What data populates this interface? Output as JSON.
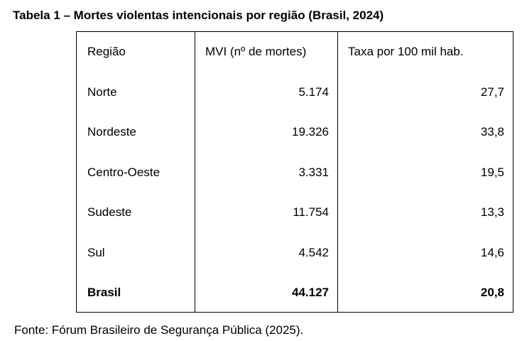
{
  "title": "Tabela 1 – Mortes violentas intencionais por região (Brasil, 2024)",
  "table": {
    "headers": [
      "Região",
      "MVI (nº de mortes)",
      "Taxa por 100 mil hab."
    ],
    "rows": [
      [
        "Norte",
        "5.174",
        "27,7"
      ],
      [
        "Nordeste",
        "19.326",
        "33,8"
      ],
      [
        "Centro-Oeste",
        "3.331",
        "19,5"
      ],
      [
        "Sudeste",
        "11.754",
        "13,3"
      ],
      [
        "Sul",
        "4.542",
        "14,6"
      ]
    ],
    "total": [
      "Brasil",
      "44.127",
      "20,8"
    ]
  },
  "source": "Fonte: Fórum Brasileiro de Segurança Pública (2025)."
}
